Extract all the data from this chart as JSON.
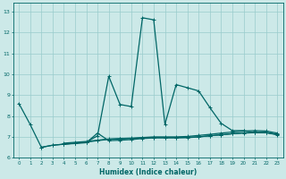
{
  "xlabel": "Humidex (Indice chaleur)",
  "ylabel": "",
  "background_color": "#cce9e8",
  "grid_color": "#99cccc",
  "line_color": "#006666",
  "xlim": [
    -0.5,
    23.5
  ],
  "ylim": [
    6.0,
    13.4
  ],
  "yticks": [
    6,
    7,
    8,
    9,
    10,
    11,
    12,
    13
  ],
  "xticks": [
    0,
    1,
    2,
    3,
    4,
    5,
    6,
    7,
    8,
    9,
    10,
    11,
    12,
    13,
    14,
    15,
    16,
    17,
    18,
    19,
    20,
    21,
    22,
    23
  ],
  "series": [
    {
      "x": [
        0,
        1,
        2,
        3,
        4,
        5,
        6,
        7,
        8,
        9,
        10,
        11,
        12,
        13,
        14,
        15,
        16,
        17,
        18,
        19,
        20,
        21,
        22,
        23
      ],
      "y": [
        8.6,
        7.6,
        6.5,
        6.6,
        6.65,
        6.7,
        6.75,
        7.05,
        9.9,
        8.55,
        8.45,
        12.7,
        12.6,
        7.6,
        9.5,
        9.35,
        9.2,
        8.4,
        7.65,
        7.3,
        7.3,
        7.2,
        7.2,
        7.1
      ]
    },
    {
      "x": [
        2,
        3,
        4,
        5,
        6,
        7,
        8,
        9,
        10,
        11,
        12,
        13,
        14,
        15,
        16,
        17,
        18,
        19,
        20,
        21,
        22,
        23
      ],
      "y": [
        6.5,
        6.6,
        6.65,
        6.7,
        6.75,
        6.82,
        6.88,
        6.9,
        6.92,
        6.95,
        6.97,
        6.97,
        6.97,
        6.98,
        7.0,
        7.05,
        7.1,
        7.15,
        7.18,
        7.2,
        7.2,
        7.12
      ]
    },
    {
      "x": [
        4,
        5,
        6,
        7,
        8,
        9,
        10,
        11,
        12,
        13,
        14,
        15,
        16,
        17,
        18,
        19,
        20,
        21,
        22,
        23
      ],
      "y": [
        6.7,
        6.74,
        6.78,
        6.84,
        6.9,
        6.92,
        6.94,
        6.97,
        7.0,
        7.0,
        7.0,
        7.02,
        7.07,
        7.12,
        7.18,
        7.23,
        7.28,
        7.3,
        7.28,
        7.18
      ]
    },
    {
      "x": [
        4,
        5,
        6,
        7,
        8,
        9,
        10,
        11,
        12,
        13,
        14,
        15,
        16,
        17,
        18,
        19,
        20,
        21,
        22,
        23
      ],
      "y": [
        6.65,
        6.68,
        6.72,
        7.18,
        6.82,
        6.84,
        6.87,
        6.92,
        6.95,
        6.95,
        6.95,
        6.96,
        7.0,
        7.05,
        7.1,
        7.15,
        7.2,
        7.22,
        7.22,
        7.12
      ]
    }
  ]
}
